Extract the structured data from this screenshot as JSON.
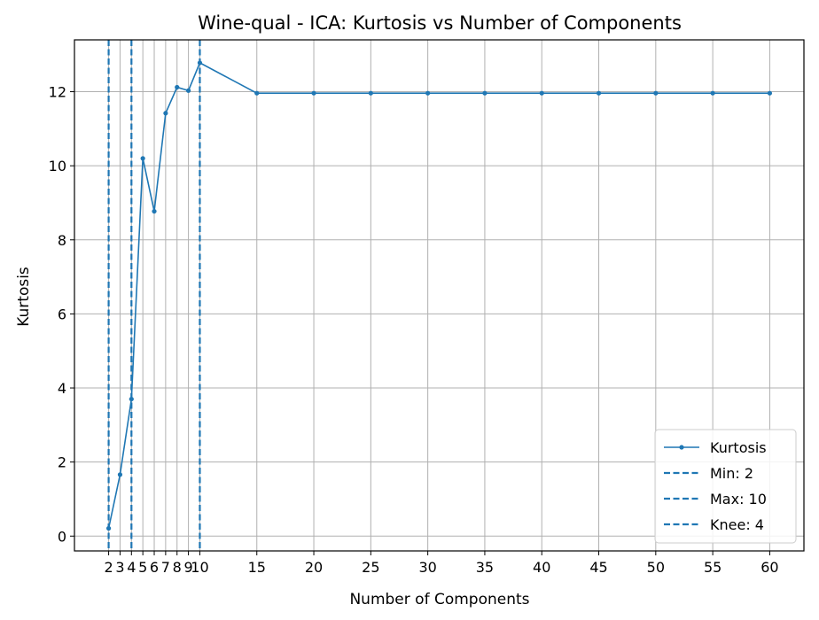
{
  "chart_data": {
    "type": "line",
    "title": "Wine-qual - ICA: Kurtosis vs Number of Components",
    "xlabel": "Number of Components",
    "ylabel": "Kurtosis",
    "xlim": [
      -1.0,
      63.0
    ],
    "ylim": [
      -0.4,
      13.4
    ],
    "grid": true,
    "x": [
      2,
      3,
      4,
      5,
      6,
      7,
      8,
      9,
      10,
      15,
      20,
      25,
      30,
      35,
      40,
      45,
      50,
      55,
      60
    ],
    "xticks": [
      "2",
      "3",
      "4",
      "5",
      "6",
      "7",
      "8",
      "9",
      "10",
      "15",
      "20",
      "25",
      "30",
      "35",
      "40",
      "45",
      "50",
      "55",
      "60"
    ],
    "yticks": [
      "0",
      "2",
      "4",
      "6",
      "8",
      "10",
      "12"
    ],
    "series": [
      {
        "name": "Kurtosis",
        "color": "#1f77b4",
        "values": [
          0.21,
          1.66,
          3.7,
          10.2,
          8.77,
          11.42,
          12.12,
          12.03,
          12.78,
          11.96,
          11.96,
          11.96,
          11.96,
          11.96,
          11.96,
          11.96,
          11.96,
          11.96,
          11.96
        ]
      }
    ],
    "vlines": [
      {
        "label": "Min: 2",
        "x": 2,
        "color": "#1f77b4"
      },
      {
        "label": "Max: 10",
        "x": 10,
        "color": "#1f77b4"
      },
      {
        "label": "Knee: 4",
        "x": 4,
        "color": "#1f77b4"
      }
    ],
    "legend_position": "lower-right"
  }
}
